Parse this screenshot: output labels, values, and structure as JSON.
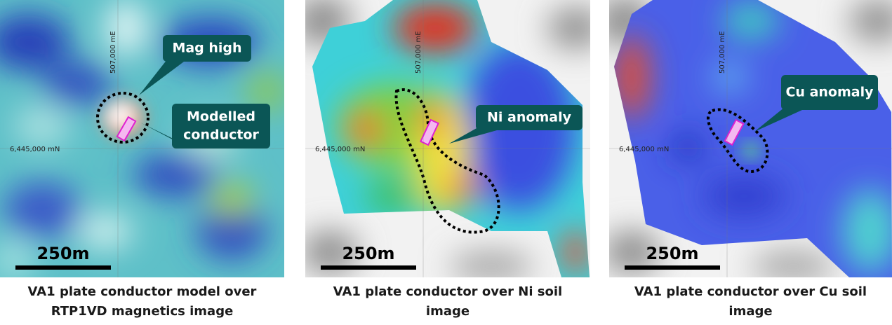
{
  "panels": [
    {
      "easting": "507,000 mE",
      "northing": "6,445,000 mN",
      "scale": "250m",
      "callouts": [
        [
          "Mag high"
        ],
        [
          "Modelled",
          "conductor"
        ]
      ],
      "caption": [
        "VA1 plate conductor model over",
        "RTP1VD magnetics image"
      ]
    },
    {
      "easting": "507,000 mE",
      "northing": "6,445,000 mN",
      "scale": "250m",
      "callouts": [
        [
          "Ni anomaly"
        ]
      ],
      "caption": [
        "VA1 plate conductor over Ni soil",
        "image"
      ]
    },
    {
      "easting": "507,000 mE",
      "northing": "6,445,000 mN",
      "scale": "250m",
      "callouts": [
        [
          "Cu anomaly"
        ]
      ],
      "caption": [
        "VA1 plate conductor over Cu soil",
        "image"
      ]
    }
  ]
}
